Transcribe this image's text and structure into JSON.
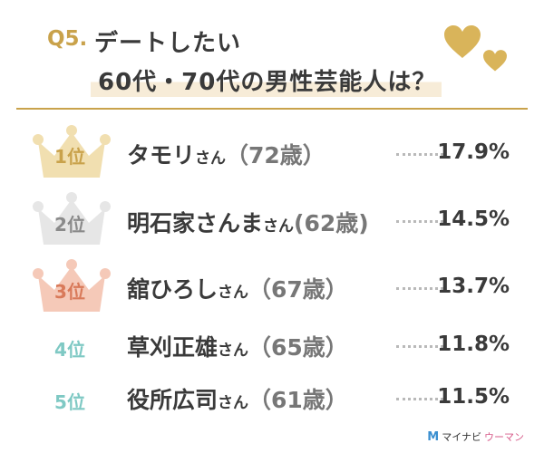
{
  "header": {
    "q_number": "Q5.",
    "title_line1": "デートしたい",
    "title_line2": "60代・70代の男性芸能人は？"
  },
  "colors": {
    "gold": "#c9a24b",
    "crown_gold": "#f1dfb0",
    "crown_silver": "#e6e6e6",
    "crown_bronze": "#f5c9b8",
    "teal": "#7fc9c4",
    "text": "#3a3a3a"
  },
  "chart_data": {
    "type": "table",
    "title": "デートしたい 60代・70代の男性芸能人は？",
    "rows": [
      {
        "rank": "1位",
        "name": "タモリ",
        "suffix": "さん",
        "age": "（72歳）",
        "percent": "17.9%",
        "value": 17.9
      },
      {
        "rank": "2位",
        "name": "明石家さんま",
        "suffix": "さん",
        "age": "(62歳)",
        "percent": "14.5%",
        "value": 14.5
      },
      {
        "rank": "3位",
        "name": "舘ひろし",
        "suffix": "さん",
        "age": "（67歳）",
        "percent": "13.7%",
        "value": 13.7
      },
      {
        "rank": "4位",
        "name": "草刈正雄",
        "suffix": "さん",
        "age": "（65歳）",
        "percent": "11.8%",
        "value": 11.8
      },
      {
        "rank": "5位",
        "name": "役所広司",
        "suffix": "さん",
        "age": "（61歳）",
        "percent": "11.5%",
        "value": 11.5
      }
    ]
  },
  "footer": {
    "brand_mark": "M",
    "brand_main": "マイナビ",
    "brand_accent": "ウーマン"
  }
}
